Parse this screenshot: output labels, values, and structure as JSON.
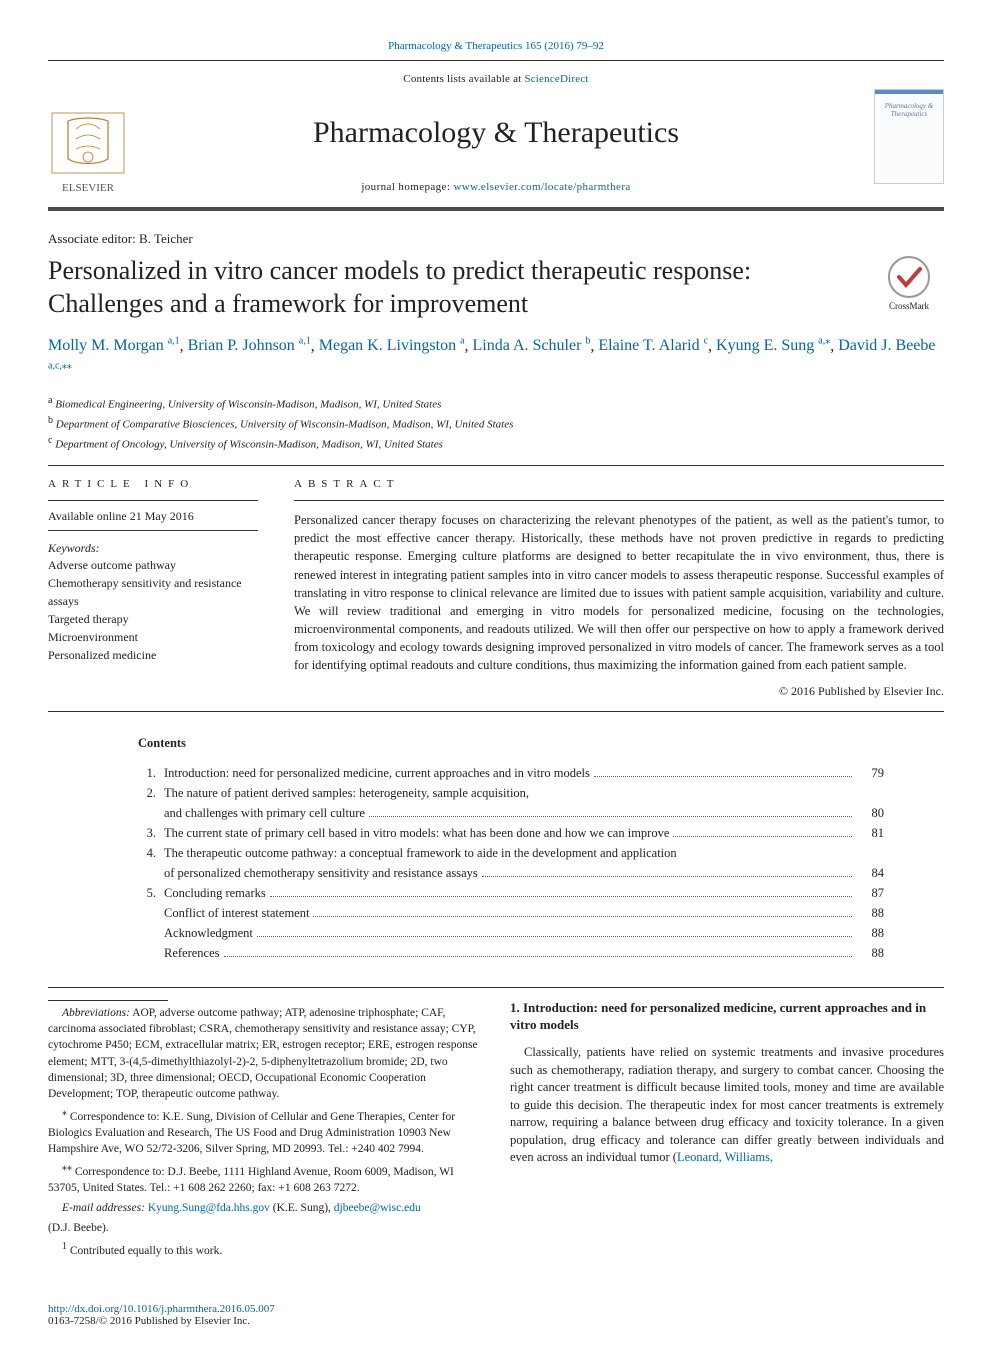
{
  "top_citation": {
    "prefix_link": "Pharmacology & Therapeutics 165 (2016) 79–92",
    "color": "#0066aa"
  },
  "masthead": {
    "sciencedirect_prefix": "Contents lists available at ",
    "sciencedirect_link": "ScienceDirect",
    "journal_name": "Pharmacology & Therapeutics",
    "homepage_prefix": "journal homepage: ",
    "homepage_link": "www.elsevier.com/locate/pharmthera",
    "elsevier_label": "ELSEVIER",
    "cover_text": "Pharmacology & Therapeutics"
  },
  "article": {
    "assoc_editor": "Associate editor: B. Teicher",
    "title": "Personalized in vitro cancer models to predict therapeutic response: Challenges and a framework for improvement",
    "crossmark_label": "CrossMark",
    "authors_html": [
      {
        "name": "Molly M. Morgan",
        "sup": "a,1"
      },
      {
        "name": "Brian P. Johnson",
        "sup": "a,1"
      },
      {
        "name": "Megan K. Livingston",
        "sup": "a"
      },
      {
        "name": "Linda A. Schuler",
        "sup": "b"
      },
      {
        "name": "Elaine T. Alarid",
        "sup": "c"
      },
      {
        "name": "Kyung E. Sung",
        "sup": "a,⁎"
      },
      {
        "name": "David J. Beebe",
        "sup": "a,c,⁎⁎"
      }
    ],
    "affiliations": [
      {
        "sup": "a",
        "text": "Biomedical Engineering, University of Wisconsin-Madison, Madison, WI, United States"
      },
      {
        "sup": "b",
        "text": "Department of Comparative Biosciences, University of Wisconsin-Madison, Madison, WI, United States"
      },
      {
        "sup": "c",
        "text": "Department of Oncology, University of Wisconsin-Madison, Madison, WI, United States"
      }
    ]
  },
  "info": {
    "head": "ARTICLE INFO",
    "available": "Available online 21 May 2016",
    "keywords_label": "Keywords:",
    "keywords": [
      "Adverse outcome pathway",
      "Chemotherapy sensitivity and resistance assays",
      "Targeted therapy",
      "Microenvironment",
      "Personalized medicine"
    ]
  },
  "abstract": {
    "head": "ABSTRACT",
    "text": "Personalized cancer therapy focuses on characterizing the relevant phenotypes of the patient, as well as the patient's tumor, to predict the most effective cancer therapy. Historically, these methods have not proven predictive in regards to predicting therapeutic response. Emerging culture platforms are designed to better recapitulate the in vivo environment, thus, there is renewed interest in integrating patient samples into in vitro cancer models to assess therapeutic response. Successful examples of translating in vitro response to clinical relevance are limited due to issues with patient sample acquisition, variability and culture. We will review traditional and emerging in vitro models for personalized medicine, focusing on the technologies, microenvironmental components, and readouts utilized. We will then offer our perspective on how to apply a framework derived from toxicology and ecology towards designing improved personalized in vitro models of cancer. The framework serves as a tool for identifying optimal readouts and culture conditions, thus maximizing the information gained from each patient sample.",
    "copyright": "© 2016 Published by Elsevier Inc."
  },
  "contents": {
    "head": "Contents",
    "items": [
      {
        "num": "1.",
        "title": "Introduction: need for personalized medicine, current approaches and in vitro models",
        "page": "79"
      },
      {
        "num": "2.",
        "title_lines": [
          "The nature of patient derived samples: heterogeneity, sample acquisition,",
          "and challenges with primary cell culture"
        ],
        "page": "80"
      },
      {
        "num": "3.",
        "title": "The current state of primary cell based in vitro models: what has been done and how we can improve",
        "page": "81"
      },
      {
        "num": "4.",
        "title_lines": [
          "The therapeutic outcome pathway: a conceptual framework to aide in the development and application",
          "of personalized chemotherapy sensitivity and resistance assays"
        ],
        "page": "84"
      },
      {
        "num": "5.",
        "title": "Concluding remarks",
        "page": "87"
      },
      {
        "num": "",
        "title": "Conflict of interest statement",
        "page": "88"
      },
      {
        "num": "",
        "title": "Acknowledgment",
        "page": "88"
      },
      {
        "num": "",
        "title": "References",
        "page": "88"
      }
    ]
  },
  "footnotes": {
    "abbr_label": "Abbreviations:",
    "abbr_text": " AOP, adverse outcome pathway; ATP, adenosine triphosphate; CAF, carcinoma associated fibroblast; CSRA, chemotherapy sensitivity and resistance assay; CYP, cytochrome P450; ECM, extracellular matrix; ER, estrogen receptor; ERE, estrogen response element; MTT, 3-(4,5-dimethylthiazolyl-2)-2, 5-diphenyltetrazolium bromide; 2D, two dimensional; 3D, three dimensional; OECD, Occupational Economic Cooperation Development; TOP, therapeutic outcome pathway.",
    "corr1_sup": "⁎",
    "corr1": " Correspondence to: K.E. Sung, Division of Cellular and Gene Therapies, Center for Biologics Evaluation and Research, The US Food and Drug Administration 10903 New Hampshire Ave, WO 52/72-3206, Silver Spring, MD 20993. Tel.: +240 402 7994.",
    "corr2_sup": "⁎⁎",
    "corr2": " Correspondence to: D.J. Beebe, 1111 Highland Avenue, Room 6009, Madison, WI 53705, United States. Tel.: +1 608 262 2260; fax: +1 608 263 7272.",
    "email_label": "E-mail addresses:",
    "email1": "Kyung.Sung@fda.hhs.gov",
    "email1_who": " (K.E. Sung), ",
    "email2": "djbeebe@wisc.edu",
    "email2_who": "(D.J. Beebe).",
    "contrib_sup": "1",
    "contrib": " Contributed equally to this work."
  },
  "body": {
    "section_head": "1. Introduction: need for personalized medicine, current approaches and in vitro models",
    "para": "Classically, patients have relied on systemic treatments and invasive procedures such as chemotherapy, radiation therapy, and surgery to combat cancer. Choosing the right cancer treatment is difficult because limited tools, money and time are available to guide this decision. The therapeutic index for most cancer treatments is extremely narrow, requiring a balance between drug efficacy and toxicity tolerance. In a given population, drug efficacy and tolerance can differ greatly between individuals and even across an individual tumor (",
    "cite_link": "Leonard, Williams,"
  },
  "footer": {
    "doi": "http://dx.doi.org/10.1016/j.pharmthera.2016.05.007",
    "issn_line": "0163-7258/© 2016 Published by Elsevier Inc."
  }
}
